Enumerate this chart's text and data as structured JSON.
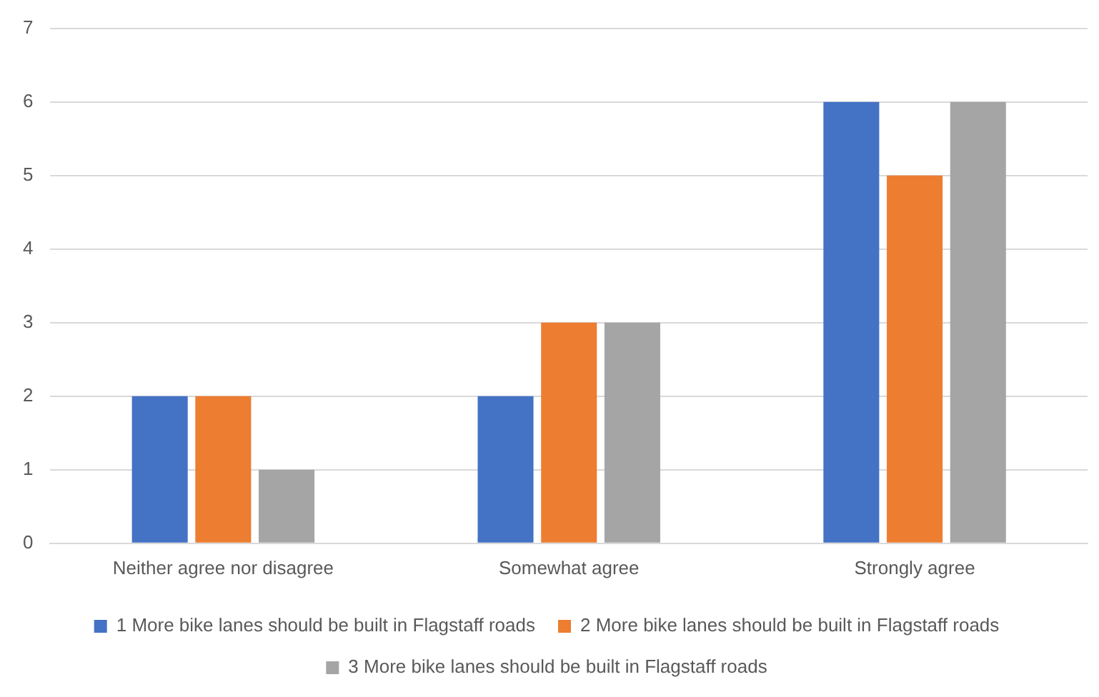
{
  "chart_data": {
    "type": "bar",
    "categories": [
      "Neither agree nor disagree",
      "Somewhat agree",
      "Strongly agree"
    ],
    "series": [
      {
        "name": "1 More bike lanes should be built in Flagstaff roads",
        "color": "#4472c4",
        "values": [
          2,
          2,
          6
        ]
      },
      {
        "name": "2 More bike lanes should be built in Flagstaff roads",
        "color": "#ed7d31",
        "values": [
          2,
          3,
          5
        ]
      },
      {
        "name": "3 More bike lanes should be built in Flagstaff roads",
        "color": "#a5a5a5",
        "values": [
          1,
          3,
          6
        ]
      }
    ],
    "ylim": [
      0,
      7
    ],
    "yticks": [
      0,
      1,
      2,
      3,
      4,
      5,
      6,
      7
    ],
    "grid": "y",
    "legend": "bottom"
  }
}
